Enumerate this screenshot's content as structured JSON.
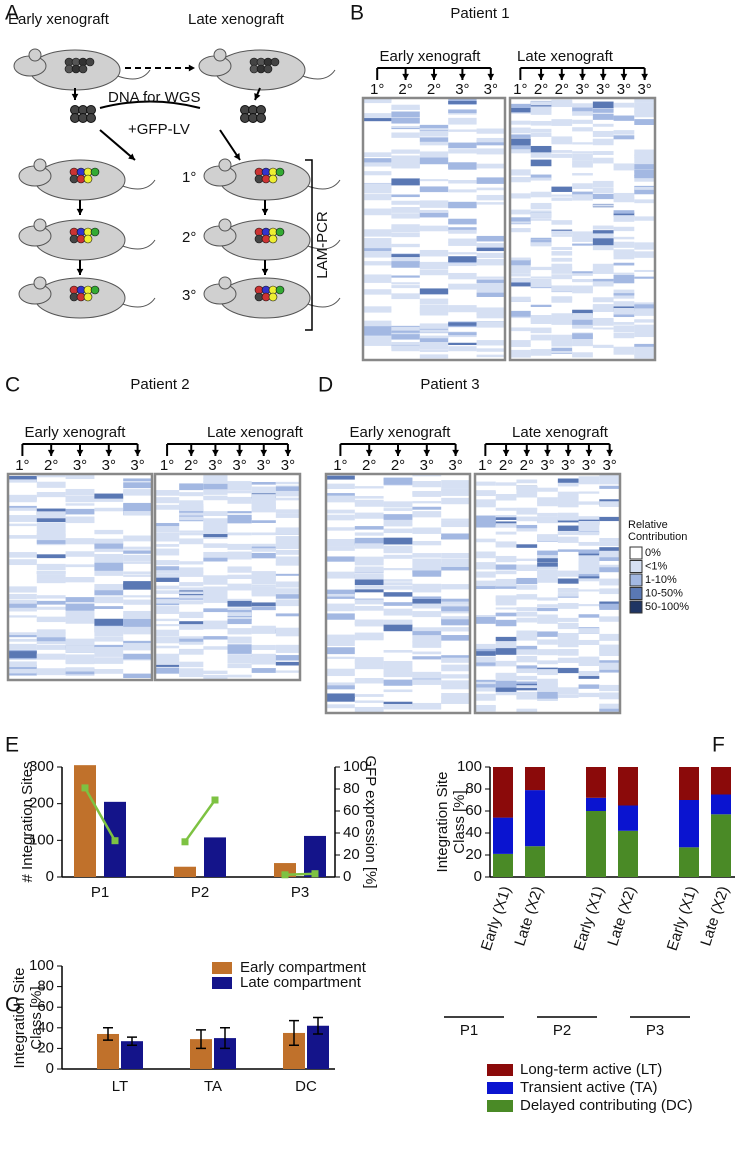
{
  "panel_labels": [
    "A",
    "B",
    "C",
    "D",
    "E",
    "F",
    "G"
  ],
  "panel_a": {
    "early": "Early xenograft",
    "late": "Late xenograft",
    "dna": "DNA for WGS",
    "gfp": "+GFP-LV",
    "generations": [
      "1°",
      "2°",
      "3°"
    ],
    "method": "LAM-PCR"
  },
  "heatmaps": [
    {
      "title": "Patient 1",
      "early": "Early xenograft",
      "late": "Late xenograft",
      "early_gens": [
        "1°",
        "2°",
        "2°",
        "3°",
        "3°"
      ],
      "late_gens": [
        "1°",
        "2°",
        "2°",
        "3°",
        "3°",
        "3°",
        "3°"
      ]
    },
    {
      "title": "Patient 2",
      "early": "Early xenograft",
      "late": "Late xenograft",
      "early_gens": [
        "1°",
        "2°",
        "3°",
        "3°",
        "3°"
      ],
      "late_gens": [
        "1°",
        "2°",
        "3°",
        "3°",
        "3°",
        "3°"
      ]
    },
    {
      "title": "Patient 3",
      "early": "Early xenograft",
      "late": "Late xenograft",
      "early_gens": [
        "1°",
        "2°",
        "2°",
        "3°",
        "3°"
      ],
      "late_gens": [
        "1°",
        "2°",
        "2°",
        "3°",
        "3°",
        "3°",
        "3°"
      ]
    }
  ],
  "heatmap_legend": {
    "title": [
      "Relative",
      "Contribution"
    ],
    "levels": [
      "0%",
      "<1%",
      "1-10%",
      "10-50%",
      "50-100%"
    ],
    "colors": [
      "#ffffff",
      "#d6e0f3",
      "#a3b8e2",
      "#5a78b4",
      "#1f3563"
    ]
  },
  "chart_data": [
    {
      "type": "bar",
      "categories": [
        "P1",
        "P2",
        "P3"
      ],
      "ylabel": "# Integration Sites",
      "y2label": "GFP expression [%]",
      "series": [
        {
          "color": "#c0712b",
          "values": [
            305,
            28,
            38
          ]
        },
        {
          "color": "#14148a",
          "values": [
            205,
            108,
            112
          ]
        },
        {
          "color": "#7dc242",
          "axis": "y2",
          "values": [
            81,
            32,
            2
          ]
        },
        {
          "color": "#7dc242",
          "axis": "y2",
          "values": [
            33,
            70,
            3
          ]
        }
      ],
      "ylim": [
        0,
        300
      ],
      "yticks": [
        0,
        100,
        200,
        300
      ],
      "y2lim": [
        0,
        100
      ],
      "y2ticks": [
        0,
        20,
        40,
        60,
        80,
        100
      ]
    },
    {
      "type": "stacked_bar",
      "categories": [
        "Early (X1)",
        "Late (X2)",
        "Early (X1)",
        "Late (X2)",
        "Early (X1)",
        "Late (X2)"
      ],
      "groups": [
        "P1",
        "P2",
        "P3"
      ],
      "ylabel": [
        "Integration Site",
        "Class [%]"
      ],
      "series": [
        {
          "name": "Long-term active (LT)",
          "color": "#8b0a0a",
          "values": [
            46,
            21,
            28,
            35,
            30,
            25
          ]
        },
        {
          "name": "Transient active (TA)",
          "color": "#0a14d0",
          "values": [
            33,
            51,
            12,
            23,
            43,
            18
          ]
        },
        {
          "name": "Delayed contributing (DC)",
          "color": "#4a8a26",
          "values": [
            21,
            28,
            60,
            42,
            27,
            57
          ]
        }
      ],
      "ylim": [
        0,
        100
      ],
      "yticks": [
        0,
        20,
        40,
        60,
        80,
        100
      ]
    },
    {
      "type": "error_bar",
      "categories": [
        "LT",
        "TA",
        "DC"
      ],
      "ylabel": [
        "Integration Site",
        "Class [%]"
      ],
      "series": [
        {
          "name": "Early compartment",
          "color": "#c0712b",
          "values": [
            34,
            29,
            35
          ],
          "errors": [
            6,
            9,
            12
          ]
        },
        {
          "name": "Late compartment",
          "color": "#14148a",
          "values": [
            27,
            30,
            42
          ],
          "errors": [
            4,
            10,
            8
          ]
        }
      ],
      "ylim": [
        0,
        100
      ],
      "yticks": [
        0,
        20,
        40,
        60,
        80,
        100
      ]
    }
  ]
}
